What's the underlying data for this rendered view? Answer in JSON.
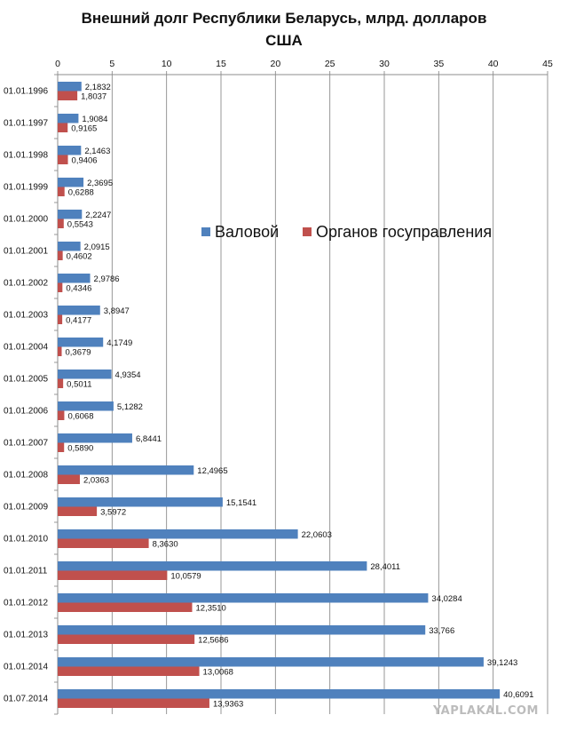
{
  "chart_data": {
    "type": "bar",
    "orientation": "horizontal",
    "title_lines": [
      "Внешний долг Республики Беларусь, млрд. долларов",
      "США"
    ],
    "xlim": [
      0,
      45
    ],
    "x_ticks": [
      "0",
      "5",
      "10",
      "15",
      "20",
      "25",
      "30",
      "35",
      "40",
      "45"
    ],
    "grid": "vertical",
    "legend_position": "center-right",
    "categories": [
      "01.01.1996",
      "01.01.1997",
      "01.01.1998",
      "01.01.1999",
      "01.01.2000",
      "01.01.2001",
      "01.01.2002",
      "01.01.2003",
      "01.01.2004",
      "01.01.2005",
      "01.01.2006",
      "01.01.2007",
      "01.01.2008",
      "01.01.2009",
      "01.01.2010",
      "01.01.2011",
      "01.01.2012",
      "01.01.2013",
      "01.01.2014",
      "01.07.2014"
    ],
    "series": [
      {
        "name": "Валовой",
        "color": "#4f81bd",
        "values": [
          2.1832,
          1.9084,
          2.1463,
          2.3695,
          2.2247,
          2.0915,
          2.9786,
          3.8947,
          4.1749,
          4.9354,
          5.1282,
          6.8441,
          12.4965,
          15.1541,
          22.0603,
          28.4011,
          34.0284,
          33.766,
          39.1243,
          40.6091
        ],
        "labels": [
          "2,1832",
          "1,9084",
          "2,1463",
          "2,3695",
          "2,2247",
          "2,0915",
          "2,9786",
          "3,8947",
          "4,1749",
          "4,9354",
          "5,1282",
          "6,8441",
          "12,4965",
          "15,1541",
          "22,0603",
          "28,4011",
          "34,0284",
          "33,766",
          "39,1243",
          "40,6091"
        ]
      },
      {
        "name": "Органов госуправления",
        "color": "#c0504d",
        "values": [
          1.8037,
          0.9165,
          0.9406,
          0.6288,
          0.5543,
          0.4602,
          0.4346,
          0.4177,
          0.3679,
          0.5011,
          0.6068,
          0.589,
          2.0363,
          3.5972,
          8.363,
          10.0579,
          12.351,
          12.5686,
          13.0068,
          13.9363
        ],
        "labels": [
          "1,8037",
          "0,9165",
          "0,9406",
          "0,6288",
          "0,5543",
          "0,4602",
          "0,4346",
          "0,4177",
          "0,3679",
          "0,5011",
          "0,6068",
          "0,5890",
          "2,0363",
          "3,5972",
          "8,3630",
          "10,0579",
          "12,3510",
          "12,5686",
          "13,0068",
          "13,9363"
        ]
      }
    ]
  },
  "watermark": "YAPLAKAL.COM"
}
